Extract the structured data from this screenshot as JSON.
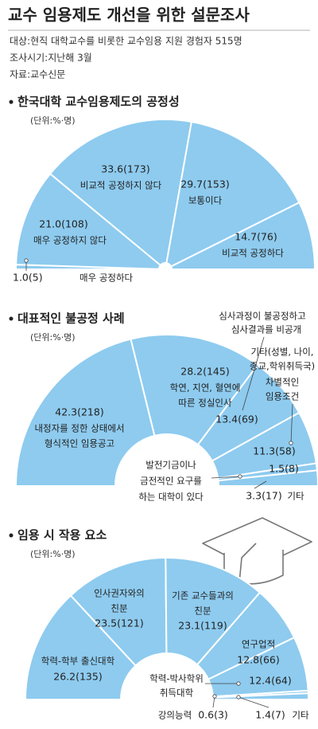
{
  "header": {
    "title": "교수 임용제도 개선을 위한 설문조사",
    "lines": [
      "대상:현직 대학교수를 비롯한 교수임용 지원 경험자 515명",
      "조사시기:지난해 3월",
      "자료:교수신문"
    ]
  },
  "chart_data": [
    {
      "type": "donut",
      "title": "한국대학 교수임용제도의 공정성",
      "subtitle": "(단위:%·명)",
      "color": "#8ecbef",
      "categories": [
        [
          "매우 공정하다"
        ],
        [
          "매우 공정하지 않다"
        ],
        [
          "비교적 공정하지 않다"
        ],
        [
          "보통이다"
        ],
        [
          "비교적 공정하다"
        ]
      ],
      "values": [
        1.0,
        21.0,
        33.6,
        29.7,
        14.7
      ],
      "value_labels": [
        "1.0(5)",
        "21.0(108)",
        "33.6(173)",
        "29.7(153)",
        "14.7(76)"
      ]
    },
    {
      "type": "donut",
      "title": "대표적인 불공정 사례",
      "subtitle": "(단위:%·명)",
      "color": "#8ecbef",
      "categories": [
        [
          "내정자를 정한 상태에서",
          "형식적인 임용공고"
        ],
        [
          "학연, 지연, 혈연에",
          "따른 정실인사"
        ],
        [
          "심사과정이 불공정하고",
          "심사결과를 비공개"
        ],
        [
          "기타(성별, 나이,",
          "종교,학위취득국)",
          "차별적인",
          "임용조건"
        ],
        [
          "발전기금이나",
          "금전적인 요구를",
          "하는 대학이 있다"
        ],
        [
          "기타"
        ]
      ],
      "values": [
        42.3,
        28.2,
        13.4,
        11.3,
        1.5,
        3.3
      ],
      "value_labels": [
        "42.3(218)",
        "28.2(145)",
        "13.4(69)",
        "11.3(58)",
        "1.5(8)",
        "3.3(17)"
      ]
    },
    {
      "type": "donut",
      "title": "임용 시 작용 요소",
      "subtitle": "(단위:%·명)",
      "color": "#8ecbef",
      "categories": [
        [
          "학력-학부 출신대학"
        ],
        [
          "인사권자와의",
          "친분"
        ],
        [
          "기존 교수들과의",
          "친분"
        ],
        [
          "연구업적"
        ],
        [
          "학력-박사학위",
          "취득대학"
        ],
        [
          "강의능력"
        ],
        [
          "기타"
        ]
      ],
      "values": [
        26.2,
        23.5,
        23.1,
        12.8,
        12.4,
        0.6,
        1.4
      ],
      "value_labels": [
        "26.2(135)",
        "23.5(121)",
        "23.1(119)",
        "12.8(66)",
        "12.4(64)",
        "0.6(3)",
        "1.4(7)"
      ]
    }
  ]
}
